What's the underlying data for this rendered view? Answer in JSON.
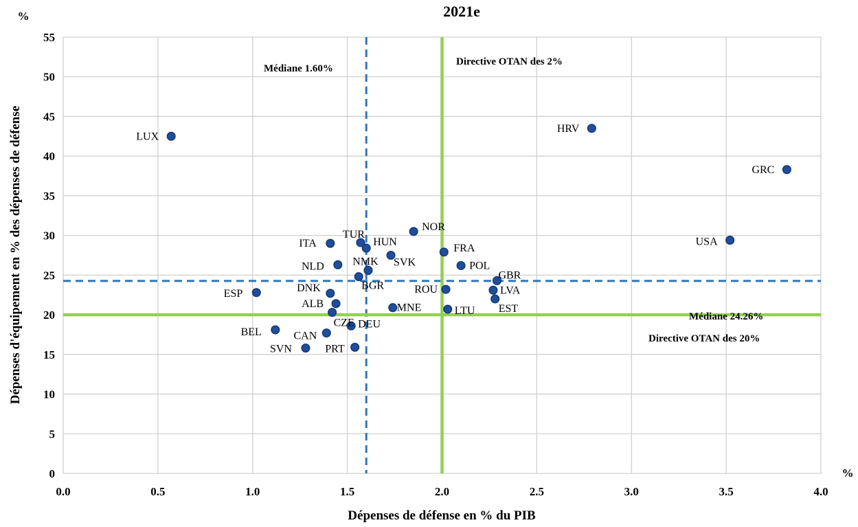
{
  "chart_data": {
    "type": "scatter",
    "title": "2021e",
    "xlabel": "Dépenses de défense en % du PIB",
    "ylabel": "Dépenses d'équipement en % des dépenses de défense",
    "x_unit": "%",
    "y_unit": "%",
    "xlim": [
      0,
      4
    ],
    "ylim": [
      0,
      55
    ],
    "x_ticks": [
      "0.0",
      "0.5",
      "1.0",
      "1.5",
      "2.0",
      "2.5",
      "3.0",
      "3.5",
      "4.0"
    ],
    "y_ticks": [
      "0",
      "5",
      "10",
      "15",
      "20",
      "25",
      "30",
      "35",
      "40",
      "45",
      "50",
      "55"
    ],
    "grid": true,
    "reference_lines": [
      {
        "orientation": "vertical",
        "value": 1.6,
        "style": "dashed",
        "color": "#2e75b6",
        "label": "Médiane 1.60%"
      },
      {
        "orientation": "horizontal",
        "value": 24.26,
        "style": "dashed",
        "color": "#2e75b6",
        "label": "Médiane 24.26%"
      },
      {
        "orientation": "vertical",
        "value": 2.0,
        "style": "solid",
        "color": "#92d050",
        "label": "Directive OTAN des 2%"
      },
      {
        "orientation": "horizontal",
        "value": 20,
        "style": "solid",
        "color": "#92d050",
        "label": "Directive OTAN des 20%"
      }
    ],
    "points": [
      {
        "label": "LUX",
        "x": 0.57,
        "y": 42.5
      },
      {
        "label": "HRV",
        "x": 2.79,
        "y": 43.5
      },
      {
        "label": "GRC",
        "x": 3.82,
        "y": 38.3
      },
      {
        "label": "USA",
        "x": 3.52,
        "y": 29.4
      },
      {
        "label": "NOR",
        "x": 1.85,
        "y": 30.5
      },
      {
        "label": "TUR",
        "x": 1.57,
        "y": 29.1
      },
      {
        "label": "ITA",
        "x": 1.41,
        "y": 29.0
      },
      {
        "label": "HUN",
        "x": 1.6,
        "y": 28.4
      },
      {
        "label": "FRA",
        "x": 2.01,
        "y": 27.9
      },
      {
        "label": "SVK",
        "x": 1.73,
        "y": 27.5
      },
      {
        "label": "NLD",
        "x": 1.45,
        "y": 26.3
      },
      {
        "label": "POL",
        "x": 2.1,
        "y": 26.2
      },
      {
        "label": "NMK",
        "x": 1.61,
        "y": 25.6
      },
      {
        "label": "BGR",
        "x": 1.56,
        "y": 24.8
      },
      {
        "label": "GBR",
        "x": 2.29,
        "y": 24.3
      },
      {
        "label": "LVA",
        "x": 2.27,
        "y": 23.1
      },
      {
        "label": "ROU",
        "x": 2.02,
        "y": 23.2
      },
      {
        "label": "ESP",
        "x": 1.02,
        "y": 22.8
      },
      {
        "label": "DNK",
        "x": 1.41,
        "y": 22.7
      },
      {
        "label": "EST",
        "x": 2.28,
        "y": 22.0
      },
      {
        "label": "ALB",
        "x": 1.44,
        "y": 21.4
      },
      {
        "label": "MNE",
        "x": 1.74,
        "y": 20.9
      },
      {
        "label": "LTU",
        "x": 2.03,
        "y": 20.7
      },
      {
        "label": "CZE",
        "x": 1.42,
        "y": 20.3
      },
      {
        "label": "DEU",
        "x": 1.52,
        "y": 18.6
      },
      {
        "label": "BEL",
        "x": 1.12,
        "y": 18.1
      },
      {
        "label": "CAN",
        "x": 1.39,
        "y": 17.7
      },
      {
        "label": "SVN",
        "x": 1.28,
        "y": 15.8
      },
      {
        "label": "PRT",
        "x": 1.54,
        "y": 15.9
      }
    ]
  }
}
